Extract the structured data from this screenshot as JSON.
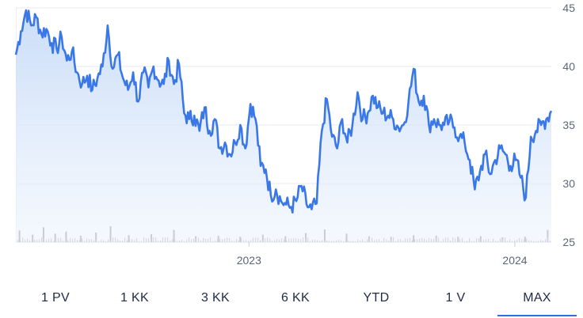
{
  "chart_data": {
    "type": "area",
    "title": "",
    "xlabel": "",
    "ylabel": "",
    "ylim": [
      25,
      45
    ],
    "y_ticks": [
      "45",
      "40",
      "35",
      "30",
      "25"
    ],
    "x_tick_labels": [
      {
        "date": "2023-01-01",
        "label": "2023"
      },
      {
        "date": "2024-01-01",
        "label": "2024"
      }
    ],
    "x_range": [
      "2022-02-15",
      "2024-02-20"
    ],
    "grid": true,
    "line_color": "#3a78e7",
    "fill_color": "#cfe0f7",
    "series": [
      {
        "points": [
          [
            "2022-02-15",
            41.0
          ],
          [
            "2022-02-22",
            43.0
          ],
          [
            "2022-03-01",
            44.8
          ],
          [
            "2022-03-08",
            43.5
          ],
          [
            "2022-03-15",
            44.2
          ],
          [
            "2022-03-22",
            42.8
          ],
          [
            "2022-03-29",
            43.2
          ],
          [
            "2022-04-05",
            42.0
          ],
          [
            "2022-04-12",
            41.5
          ],
          [
            "2022-04-19",
            42.5
          ],
          [
            "2022-04-26",
            40.5
          ],
          [
            "2022-05-03",
            41.3
          ],
          [
            "2022-05-10",
            39.5
          ],
          [
            "2022-05-17",
            38.5
          ],
          [
            "2022-05-24",
            39.2
          ],
          [
            "2022-05-31",
            38.0
          ],
          [
            "2022-06-07",
            39.0
          ],
          [
            "2022-06-14",
            40.0
          ],
          [
            "2022-06-21",
            43.5
          ],
          [
            "2022-06-28",
            39.8
          ],
          [
            "2022-07-05",
            41.0
          ],
          [
            "2022-07-12",
            39.0
          ],
          [
            "2022-07-19",
            38.0
          ],
          [
            "2022-07-26",
            39.5
          ],
          [
            "2022-08-02",
            37.0
          ],
          [
            "2022-08-09",
            39.5
          ],
          [
            "2022-08-16",
            38.2
          ],
          [
            "2022-08-23",
            40.0
          ],
          [
            "2022-08-30",
            38.8
          ],
          [
            "2022-09-06",
            38.5
          ],
          [
            "2022-09-13",
            40.5
          ],
          [
            "2022-09-20",
            38.5
          ],
          [
            "2022-09-27",
            40.2
          ],
          [
            "2022-10-04",
            36.0
          ],
          [
            "2022-10-11",
            35.5
          ],
          [
            "2022-10-18",
            35.8
          ],
          [
            "2022-10-25",
            34.5
          ],
          [
            "2022-11-01",
            36.5
          ],
          [
            "2022-11-08",
            34.5
          ],
          [
            "2022-11-15",
            35.5
          ],
          [
            "2022-11-22",
            33.0
          ],
          [
            "2022-11-29",
            33.5
          ],
          [
            "2022-12-06",
            32.5
          ],
          [
            "2022-12-13",
            33.5
          ],
          [
            "2022-12-20",
            35.0
          ],
          [
            "2022-12-27",
            33.0
          ],
          [
            "2023-01-03",
            36.8
          ],
          [
            "2023-01-10",
            35.5
          ],
          [
            "2023-01-17",
            31.5
          ],
          [
            "2023-01-24",
            31.2
          ],
          [
            "2023-01-31",
            29.0
          ],
          [
            "2023-02-07",
            29.5
          ],
          [
            "2023-02-14",
            28.5
          ],
          [
            "2023-02-21",
            28.2
          ],
          [
            "2023-02-28",
            28.0
          ],
          [
            "2023-03-07",
            28.5
          ],
          [
            "2023-03-14",
            29.8
          ],
          [
            "2023-03-21",
            28.2
          ],
          [
            "2023-03-28",
            27.8
          ],
          [
            "2023-04-04",
            28.3
          ],
          [
            "2023-04-11",
            34.5
          ],
          [
            "2023-04-18",
            37.2
          ],
          [
            "2023-04-25",
            34.0
          ],
          [
            "2023-05-02",
            33.0
          ],
          [
            "2023-05-09",
            35.5
          ],
          [
            "2023-05-16",
            33.5
          ],
          [
            "2023-05-23",
            35.0
          ],
          [
            "2023-05-30",
            37.8
          ],
          [
            "2023-06-06",
            35.5
          ],
          [
            "2023-06-13",
            36.0
          ],
          [
            "2023-06-20",
            37.5
          ],
          [
            "2023-06-27",
            36.5
          ],
          [
            "2023-07-04",
            36.0
          ],
          [
            "2023-07-11",
            35.8
          ],
          [
            "2023-07-18",
            35.5
          ],
          [
            "2023-07-25",
            34.8
          ],
          [
            "2023-08-01",
            35.0
          ],
          [
            "2023-08-08",
            37.0
          ],
          [
            "2023-08-15",
            39.8
          ],
          [
            "2023-08-22",
            37.0
          ],
          [
            "2023-08-29",
            37.5
          ],
          [
            "2023-09-05",
            35.0
          ],
          [
            "2023-09-12",
            35.5
          ],
          [
            "2023-09-19",
            35.0
          ],
          [
            "2023-09-26",
            35.0
          ],
          [
            "2023-10-03",
            35.3
          ],
          [
            "2023-10-10",
            34.8
          ],
          [
            "2023-10-17",
            34.0
          ],
          [
            "2023-10-24",
            33.5
          ],
          [
            "2023-10-31",
            32.0
          ],
          [
            "2023-11-07",
            29.5
          ],
          [
            "2023-11-14",
            31.0
          ],
          [
            "2023-11-21",
            32.5
          ],
          [
            "2023-11-28",
            30.8
          ],
          [
            "2023-12-05",
            32.0
          ],
          [
            "2023-12-12",
            33.0
          ],
          [
            "2023-12-19",
            32.5
          ],
          [
            "2023-12-26",
            31.5
          ],
          [
            "2024-01-02",
            32.0
          ],
          [
            "2024-01-09",
            30.5
          ],
          [
            "2024-01-16",
            28.8
          ],
          [
            "2024-01-23",
            34.0
          ],
          [
            "2024-01-30",
            34.5
          ],
          [
            "2024-02-06",
            35.0
          ],
          [
            "2024-02-13",
            35.5
          ],
          [
            "2024-02-20",
            36.2
          ]
        ]
      }
    ],
    "volume": [
      [
        "2022-02-20",
        2.2
      ],
      [
        "2022-03-10",
        1.4
      ],
      [
        "2022-03-25",
        2.8
      ],
      [
        "2022-04-10",
        1.6
      ],
      [
        "2022-04-25",
        2.0
      ],
      [
        "2022-05-15",
        1.2
      ],
      [
        "2022-06-05",
        1.8
      ],
      [
        "2022-06-25",
        3.0
      ],
      [
        "2022-07-20",
        1.3
      ],
      [
        "2022-08-20",
        1.5
      ],
      [
        "2022-09-20",
        2.3
      ],
      [
        "2022-10-20",
        1.1
      ],
      [
        "2022-11-20",
        1.2
      ],
      [
        "2022-12-20",
        1.0
      ],
      [
        "2023-01-20",
        1.4
      ],
      [
        "2023-02-20",
        1.1
      ],
      [
        "2023-03-20",
        1.7
      ],
      [
        "2023-04-15",
        2.4
      ],
      [
        "2023-05-15",
        1.6
      ],
      [
        "2023-06-15",
        1.1
      ],
      [
        "2023-07-15",
        1.0
      ],
      [
        "2023-08-15",
        1.3
      ],
      [
        "2023-09-15",
        1.2
      ],
      [
        "2023-10-15",
        1.0
      ],
      [
        "2023-11-15",
        1.1
      ],
      [
        "2023-12-15",
        0.9
      ],
      [
        "2024-01-15",
        1.0
      ],
      [
        "2024-02-15",
        2.3
      ]
    ]
  },
  "range_selector": {
    "buttons": [
      "1 PV",
      "1 KK",
      "3 KK",
      "6 KK",
      "YTD",
      "1 V",
      "MAX"
    ],
    "selected": "MAX",
    "accent_color": "#2f6fe4"
  }
}
